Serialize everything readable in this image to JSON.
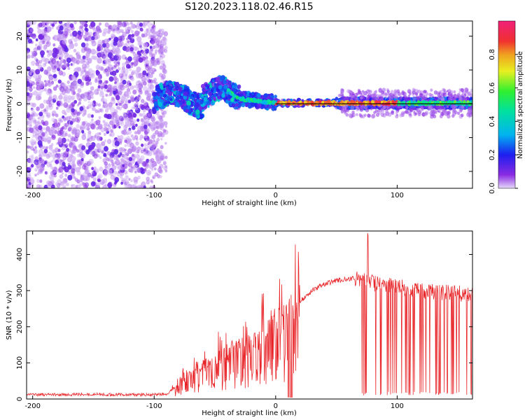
{
  "title": "S120.2023.118.02.46.R15",
  "colors": {
    "snr_line": "#e8262a",
    "track_line": "#000000",
    "frame": "#000000"
  },
  "chart_data": [
    {
      "type": "heatmap",
      "xlabel": "Height of straight line (km)",
      "ylabel": "Frequency (Hz)",
      "xlim": [
        -205,
        162
      ],
      "ylim": [
        -25,
        24.5
      ],
      "xticks": [
        -200,
        -100,
        0,
        100
      ],
      "xtick_labels": [
        "-200",
        "-100",
        "0",
        "100"
      ],
      "yticks": [
        -20,
        -10,
        0,
        10,
        20
      ],
      "ytick_labels": [
        "-20",
        "-10",
        "0",
        "10",
        "20"
      ],
      "colormap": "rainbow (purple-blue-cyan-green-yellow-red-magenta)",
      "track": {
        "x_start": 0,
        "x_end": 162,
        "frequency": 0
      },
      "colorbar": {
        "label": "Normalized spectral amplitude",
        "range": [
          0,
          1
        ],
        "ticks": [
          0.0,
          0.2,
          0.4,
          0.6,
          0.8
        ],
        "tick_labels": [
          "0.0",
          "0.2",
          "0.4",
          "0.6",
          "0.8"
        ]
      }
    },
    {
      "type": "line",
      "xlabel": "Height of straight line (km)",
      "ylabel": "SNR (10 * v/v)",
      "xlim": [
        -205,
        162
      ],
      "ylim": [
        0,
        465
      ],
      "xticks": [
        -200,
        -100,
        0,
        100
      ],
      "xtick_labels": [
        "-200",
        "-100",
        "0",
        "100"
      ],
      "yticks": [
        0,
        100,
        200,
        300,
        400
      ],
      "ytick_labels": [
        "0",
        "100",
        "200",
        "300",
        "400"
      ],
      "x": [
        -205,
        -180,
        -150,
        -120,
        -100,
        -90,
        -85,
        -80,
        -70,
        -60,
        -50,
        -40,
        -30,
        -20,
        -10,
        0,
        10,
        20,
        30,
        40,
        50,
        60,
        65,
        70,
        75,
        80,
        90,
        100,
        110,
        120,
        130,
        140,
        150,
        162
      ],
      "y": [
        12,
        12,
        13,
        12,
        12,
        14,
        25,
        40,
        70,
        90,
        110,
        125,
        140,
        155,
        175,
        200,
        235,
        270,
        300,
        318,
        328,
        332,
        335,
        330,
        330,
        320,
        315,
        310,
        305,
        300,
        298,
        295,
        292,
        290
      ]
    }
  ]
}
